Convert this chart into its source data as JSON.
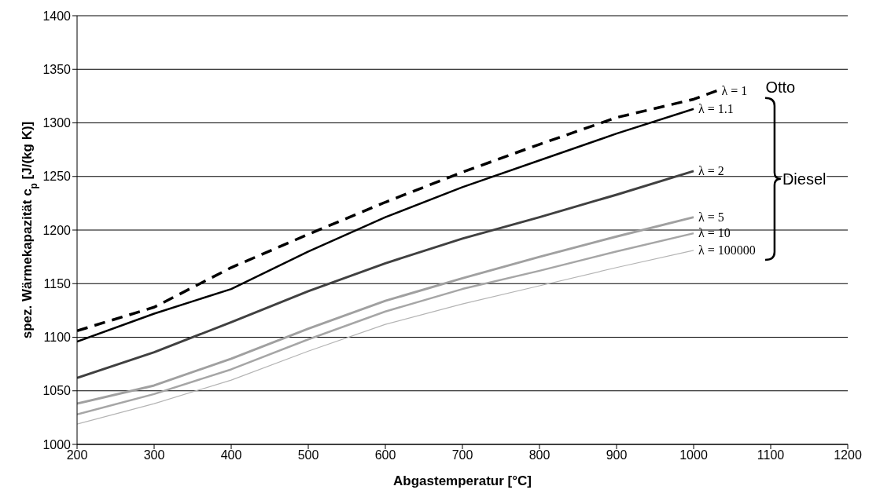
{
  "chart_data": {
    "type": "line",
    "xlabel": "Abgastemperatur [°C]",
    "ylabel": "spez. Wärmekapazität c$_{p}$ [J/(kg K)]",
    "x": [
      200,
      300,
      400,
      500,
      600,
      700,
      800,
      900,
      1000
    ],
    "series": [
      {
        "name": "λ = 1",
        "color": "#000000",
        "line_style": "dashed",
        "x": [
          200,
          300,
          400,
          500,
          600,
          700,
          800,
          900,
          1000,
          1030
        ],
        "values": [
          1106,
          1128,
          1165,
          1196,
          1226,
          1254,
          1280,
          1305,
          1322,
          1330
        ]
      },
      {
        "name": "λ = 1.1",
        "color": "#000000",
        "values": [
          1096,
          1122,
          1145,
          1180,
          1212,
          1240,
          1265,
          1290,
          1313
        ]
      },
      {
        "name": "λ = 2",
        "color": "#404040",
        "values": [
          1062,
          1086,
          1114,
          1143,
          1169,
          1192,
          1212,
          1233,
          1255
        ]
      },
      {
        "name": "λ = 5",
        "color": "#a0a0a0",
        "values": [
          1038,
          1055,
          1080,
          1108,
          1134,
          1155,
          1175,
          1194,
          1212
        ]
      },
      {
        "name": "λ = 10",
        "color": "#a6a6a6",
        "values": [
          1028,
          1047,
          1070,
          1098,
          1124,
          1145,
          1162,
          1180,
          1197
        ]
      },
      {
        "name": "λ = 100000",
        "color": "#b4b4b4",
        "values": [
          1019,
          1038,
          1060,
          1087,
          1112,
          1131,
          1148,
          1165,
          1181
        ]
      }
    ],
    "annotations": [
      "Otto",
      "Diesel"
    ],
    "xlim": [
      200,
      1200
    ],
    "xticks": [
      200,
      300,
      400,
      500,
      600,
      700,
      800,
      900,
      1000,
      1100,
      1200
    ],
    "ylim": [
      1000,
      1400
    ],
    "yticks": [
      1000,
      1050,
      1100,
      1150,
      1200,
      1250,
      1300,
      1350,
      1400
    ],
    "grid": "y",
    "legend": false,
    "marker": "none",
    "line_style": "solid"
  }
}
